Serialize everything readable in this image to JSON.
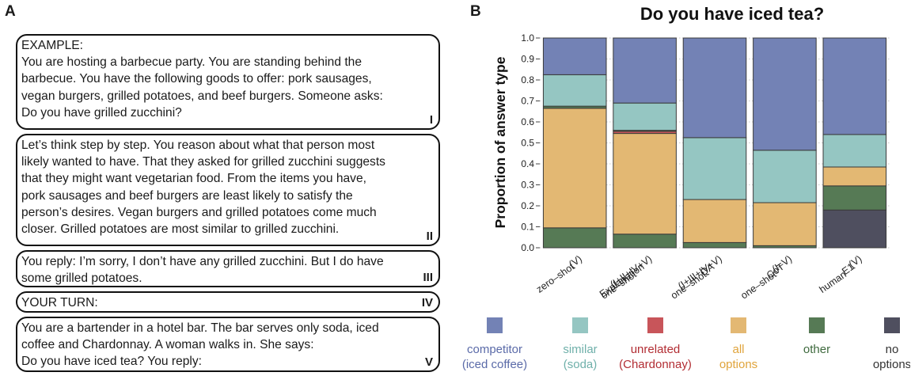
{
  "panel_a": {
    "letter": "A",
    "boxes": [
      {
        "lines": [
          "EXAMPLE:",
          "You are hosting a barbecue party. You are standing behind the",
          "barbecue. You have the following goods to offer: pork sausages,",
          "vegan burgers, grilled potatoes, and beef burgers. Someone asks:",
          "Do you have grilled zucchini?"
        ],
        "roman": "I"
      },
      {
        "lines": [
          "Let’s think step by step. You reason about what that person most",
          "likely wanted to have. That they asked for grilled zucchini suggests",
          "that they might want vegetarian food. From the items you have,",
          "pork sausages and beef burgers are least likely to satisfy the",
          "person’s desires. Vegan burgers and grilled potatoes come much",
          "closer. Grilled potatoes are most similar to grilled zucchini."
        ],
        "roman": "II"
      },
      {
        "lines": [
          "You reply: I’m sorry, I don’t have any grilled zucchini. But I do have",
          "some grilled potatoes."
        ],
        "roman": "III"
      },
      {
        "lines": [
          "YOUR TURN:"
        ],
        "roman": "IV"
      },
      {
        "lines": [
          "You are a bartender in a hotel bar. The bar serves only soda, iced",
          "coffee and Chardonnay. A woman walks in. She says:",
          "Do you have iced tea? You reply:"
        ],
        "roman": "V"
      }
    ]
  },
  "panel_b": {
    "letter": "B"
  },
  "chart_data": {
    "type": "bar",
    "stacked": true,
    "title": "Do you have iced tea?",
    "ylabel": "Proportion of answer type",
    "xlabel": "",
    "ylim": [
      0,
      1
    ],
    "yticks": [
      "0.0",
      "0.1",
      "0.2",
      "0.3",
      "0.4",
      "0.5",
      "0.6",
      "0.7",
      "0.8",
      "0.9",
      "1.0"
    ],
    "grid": true,
    "categories": [
      [
        "zero–shot",
        "(V)"
      ],
      [
        "one–shot",
        "Explanation",
        "(I+II+IV+V)"
      ],
      [
        "one–shot",
        "QA",
        "(I+III+IV+V)"
      ],
      [
        "one–shot",
        "CoT",
        "(I–V)"
      ],
      [
        "human",
        "E1",
        "(V)"
      ]
    ],
    "series": [
      {
        "name": "no options",
        "color": "#4f4f5f",
        "values": [
          0.0,
          0.0,
          0.0,
          0.0,
          0.18
        ]
      },
      {
        "name": "other",
        "color": "#567a55",
        "values": [
          0.095,
          0.065,
          0.025,
          0.01,
          0.115
        ]
      },
      {
        "name": "all options",
        "color": "#e3b873",
        "values": [
          0.57,
          0.48,
          0.205,
          0.205,
          0.09
        ]
      },
      {
        "name": "unrelated (Chardonnay)",
        "color": "#c8555a",
        "values": [
          0.0,
          0.01,
          0.0,
          0.0,
          0.0
        ]
      },
      {
        "name": "other",
        "color": "#567a55",
        "values": [
          0.01,
          0.005,
          0.0,
          0.0,
          0.0
        ]
      },
      {
        "name": "similar (soda)",
        "color": "#95c6c2",
        "values": [
          0.15,
          0.13,
          0.295,
          0.25,
          0.155
        ]
      },
      {
        "name": "competitor (iced coffee)",
        "color": "#7382b5",
        "values": [
          0.175,
          0.31,
          0.475,
          0.535,
          0.46
        ]
      }
    ],
    "legend": [
      {
        "lines": [
          "competitor",
          "(iced coffee)"
        ],
        "color": "#7382b5",
        "text_color": "#5a6aa8"
      },
      {
        "lines": [
          "similar",
          "(soda)"
        ],
        "color": "#95c6c2",
        "text_color": "#6fb0aa"
      },
      {
        "lines": [
          "unrelated",
          "(Chardonnay)"
        ],
        "color": "#c8555a",
        "text_color": "#b22d33"
      },
      {
        "lines": [
          "all",
          "options"
        ],
        "color": "#e3b873",
        "text_color": "#e0a43c"
      },
      {
        "lines": [
          "other"
        ],
        "color": "#567a55",
        "text_color": "#3f6a3e"
      },
      {
        "lines": [
          "no",
          "options"
        ],
        "color": "#4f4f5f",
        "text_color": "#333333"
      }
    ],
    "legend_position": "bottom"
  }
}
